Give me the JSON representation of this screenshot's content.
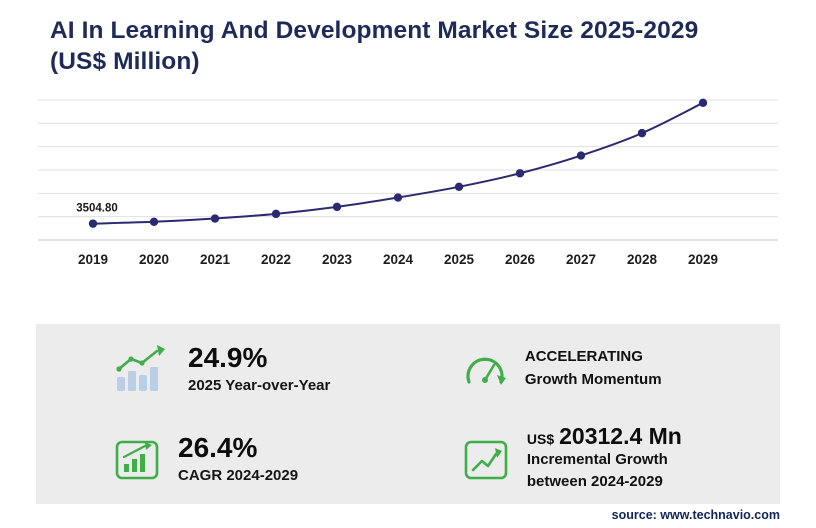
{
  "title": {
    "line1": "AI In Learning And Development Market Size 2025-2029",
    "line2": "(US$ Million)"
  },
  "chart_data": {
    "type": "line",
    "title": "AI In Learning And Development Market Size 2025-2029 (US$ Million)",
    "x": [
      2019,
      2020,
      2021,
      2022,
      2023,
      2024,
      2025,
      2026,
      2027,
      2028,
      2029
    ],
    "values": [
      3504.8,
      3900,
      4600,
      5600,
      7100,
      9100,
      11400,
      14300,
      18100,
      22900,
      29400
    ],
    "first_point_label": "3504.80",
    "xlabel": "",
    "ylabel": "US$ Million",
    "ylim": [
      0,
      30000
    ],
    "gridlines": 7,
    "grid": true,
    "legend": "none",
    "line_color": "#2a2a72"
  },
  "stats": {
    "yoy": {
      "icon": "bar-chart-up-icon",
      "value": "24.9%",
      "label": "2025 Year-over-Year"
    },
    "momentum": {
      "icon": "speedometer-icon",
      "line1": "ACCELERATING",
      "line2": "Growth Momentum"
    },
    "cagr": {
      "icon": "bar-chart-frame-icon",
      "value": "26.4%",
      "label": "CAGR 2024-2029"
    },
    "incremental": {
      "icon": "growth-arrow-icon",
      "currency": "US$",
      "value": "20312.4 Mn",
      "line1": "Incremental Growth",
      "line2": "between 2024-2029"
    }
  },
  "source": "source: www.technavio.com",
  "colors": {
    "navy": "#1e2b58",
    "green": "#3fae49",
    "light_blue": "#b9cfe8",
    "line": "#2a2a72",
    "panel_bg": "#ececec"
  }
}
